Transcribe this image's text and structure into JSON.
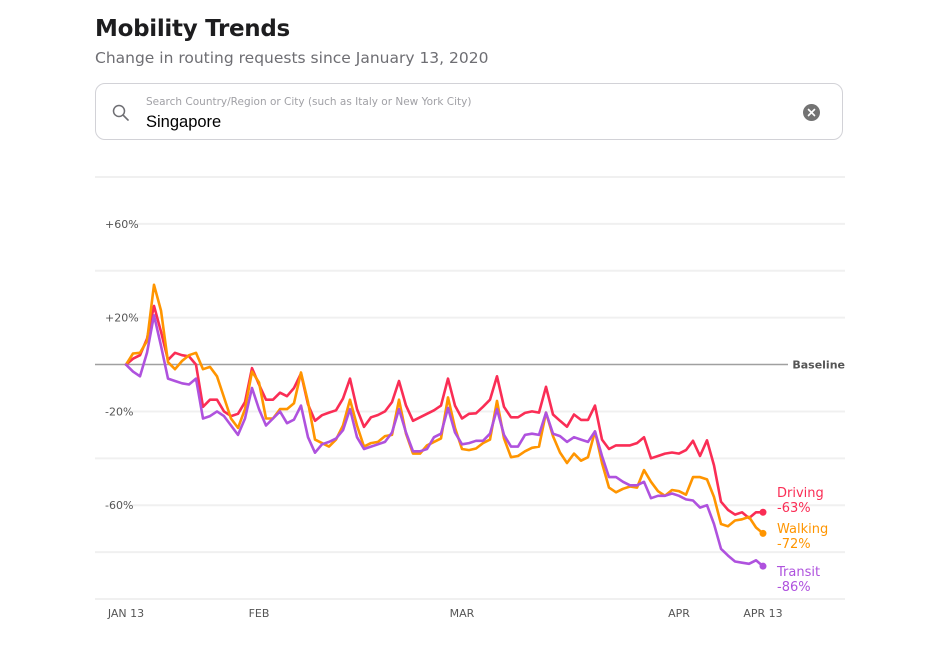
{
  "header": {
    "title": "Mobility Trends",
    "subtitle": "Change in routing requests since January 13, 2020"
  },
  "search": {
    "placeholder": "Search Country/Region or City (such as Italy or New York City)",
    "value": "Singapore",
    "search_icon": "search-icon",
    "clear_icon": "clear-circle-x-icon"
  },
  "chart_data": {
    "type": "line",
    "title": "Mobility Trends",
    "subtitle": "Change in routing requests since January 13, 2020",
    "xlabel": "",
    "ylabel": "",
    "x_start_label": "JAN 13",
    "x_days": 92,
    "x_ticks": [
      {
        "day": 0,
        "label": "JAN 13"
      },
      {
        "day": 19,
        "label": "FEB"
      },
      {
        "day": 48,
        "label": "MAR"
      },
      {
        "day": 79,
        "label": "APR"
      },
      {
        "day": 91,
        "label": "APR 13"
      }
    ],
    "y_ticks": [
      {
        "value": 60,
        "label": "+60%"
      },
      {
        "value": 20,
        "label": "+20%"
      },
      {
        "value": -20,
        "label": "-20%"
      },
      {
        "value": -60,
        "label": "-60%"
      }
    ],
    "gridlines": [
      80,
      60,
      40,
      20,
      -20,
      -40,
      -60,
      -80,
      -100
    ],
    "ylim": [
      -100,
      80
    ],
    "baseline": {
      "value": 0,
      "label": "Baseline"
    },
    "grid": true,
    "legend": "right-end-labels",
    "series": [
      {
        "name": "Driving",
        "end_label": "-63%",
        "color": "#fa2d55",
        "values": [
          0,
          2.5,
          4,
          11,
          25,
          14,
          2,
          5,
          4,
          3.5,
          0,
          -18,
          -15,
          -15,
          -20,
          -22,
          -21,
          -16,
          -1.5,
          -8.5,
          -15,
          -15,
          -12,
          -13.5,
          -10,
          -3.8,
          -17,
          -24,
          -21.6,
          -20.5,
          -19.5,
          -14.5,
          -6,
          -19,
          -26.6,
          -22.5,
          -21.5,
          -20,
          -16,
          -7,
          -17.5,
          -24,
          -22.5,
          -21,
          -19.5,
          -17.5,
          -6,
          -17.5,
          -23,
          -21,
          -20.8,
          -18,
          -15,
          -5,
          -18,
          -22.5,
          -22.5,
          -20.6,
          -20,
          -20.5,
          -9.5,
          -21.3,
          -24,
          -26.5,
          -21.3,
          -23.6,
          -23.6,
          -17.5,
          -32,
          -36,
          -34.5,
          -34.5,
          -34.5,
          -33.5,
          -31,
          -40,
          -39,
          -38,
          -37.5,
          -38,
          -36.5,
          -32.5,
          -39,
          -32.3,
          -43,
          -58.5,
          -62,
          -64,
          -63,
          -65.5,
          -63,
          -63
        ]
      },
      {
        "name": "Walking",
        "end_label": "-72%",
        "color": "#ff9500",
        "values": [
          0,
          4.7,
          5,
          10,
          34,
          23,
          1,
          -2,
          1.5,
          4,
          5,
          -2,
          -1,
          -5,
          -14,
          -23,
          -27,
          -19,
          -3,
          -7.6,
          -23,
          -23,
          -19,
          -19,
          -16.5,
          -3.4,
          -16,
          -32,
          -33.5,
          -35,
          -32,
          -26,
          -15,
          -26,
          -35,
          -33.5,
          -33,
          -30.5,
          -30,
          -15,
          -29.5,
          -38,
          -38,
          -34.5,
          -33,
          -31.5,
          -14,
          -27,
          -36,
          -36.5,
          -35.8,
          -33.5,
          -32,
          -15.5,
          -31.5,
          -39.5,
          -39,
          -37,
          -35.5,
          -35,
          -20.5,
          -30.5,
          -37.5,
          -42,
          -38,
          -41,
          -39.5,
          -28.5,
          -42,
          -52.5,
          -54.5,
          -53,
          -52,
          -52.5,
          -45,
          -50,
          -54,
          -56,
          -53.5,
          -54,
          -55.5,
          -48,
          -48,
          -49,
          -56.5,
          -68,
          -69,
          -66.5,
          -66,
          -65,
          -69.5,
          -72
        ]
      },
      {
        "name": "Transit",
        "end_label": "-86%",
        "color": "#af52de",
        "values": [
          0,
          -3,
          -5,
          5,
          21,
          8,
          -6,
          -7,
          -8,
          -8.5,
          -6,
          -23,
          -22,
          -20,
          -22,
          -26,
          -30,
          -23,
          -10,
          -19,
          -26,
          -23,
          -20,
          -25,
          -23.5,
          -17.5,
          -31,
          -37.6,
          -34,
          -33,
          -31.6,
          -28,
          -19,
          -31,
          -36,
          -35,
          -34,
          -33,
          -29,
          -19,
          -29,
          -37,
          -37,
          -36,
          -31,
          -29.5,
          -18.5,
          -29,
          -34,
          -33.5,
          -32.5,
          -32.5,
          -29.5,
          -19,
          -30,
          -35,
          -35,
          -30,
          -29.5,
          -30,
          -20.5,
          -29.5,
          -30.5,
          -33,
          -31,
          -32,
          -33,
          -28.5,
          -39,
          -48,
          -48,
          -50,
          -51.5,
          -51.5,
          -50,
          -57,
          -56,
          -56,
          -55,
          -56,
          -57.5,
          -58,
          -61,
          -60,
          -68,
          -78.6,
          -81.5,
          -84,
          -84.5,
          -85,
          -83.5,
          -86
        ]
      }
    ]
  }
}
